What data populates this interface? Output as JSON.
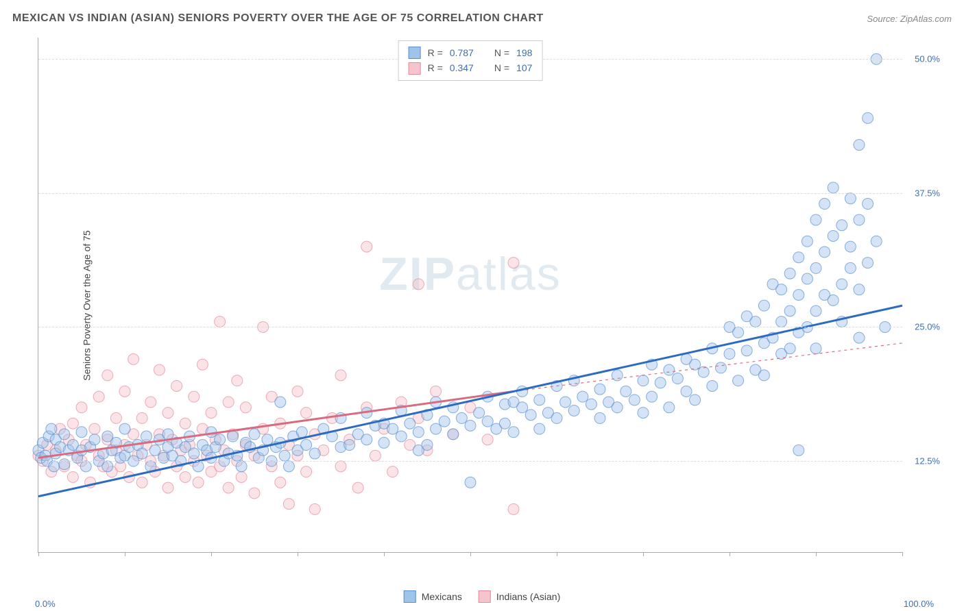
{
  "header": {
    "title": "MEXICAN VS INDIAN (ASIAN) SENIORS POVERTY OVER THE AGE OF 75 CORRELATION CHART",
    "source_prefix": "Source: ",
    "source_name": "ZipAtlas.com"
  },
  "watermark": {
    "left": "ZIP",
    "right": "atlas"
  },
  "chart": {
    "type": "scatter",
    "ylabel": "Seniors Poverty Over the Age of 75",
    "xlim": [
      0,
      100
    ],
    "ylim": [
      4,
      52
    ],
    "xtick_positions": [
      0,
      10,
      20,
      30,
      40,
      50,
      60,
      70,
      80,
      90,
      100
    ],
    "xtick_labels": {
      "0": "0.0%",
      "100": "100.0%"
    },
    "ytick_positions": [
      12.5,
      25.0,
      37.5,
      50.0
    ],
    "ytick_labels": [
      "12.5%",
      "25.0%",
      "37.5%",
      "50.0%"
    ],
    "grid_color": "#dddddd",
    "axis_color": "#aaaaaa",
    "background_color": "#ffffff",
    "marker_radius": 8,
    "marker_opacity": 0.45,
    "line_width_solid": 3,
    "line_width_dashed": 1.2,
    "series": {
      "mexicans": {
        "label": "Mexicans",
        "fill_color": "#9fc4ea",
        "stroke_color": "#5a8fcf",
        "line_color": "#2d6bc0",
        "trend_start": [
          0,
          9.2
        ],
        "trend_end": [
          100,
          27.0
        ],
        "points": [
          [
            0,
            13.5
          ],
          [
            0.3,
            12.8
          ],
          [
            0.5,
            14.2
          ],
          [
            0.8,
            13.0
          ],
          [
            1,
            12.5
          ],
          [
            1.2,
            14.8
          ],
          [
            1.5,
            15.5
          ],
          [
            1.8,
            12.0
          ],
          [
            2,
            13.2
          ],
          [
            2,
            14.5
          ],
          [
            2.5,
            13.8
          ],
          [
            3,
            12.2
          ],
          [
            3,
            15.0
          ],
          [
            3.5,
            13.5
          ],
          [
            4,
            14.0
          ],
          [
            4.5,
            12.8
          ],
          [
            5,
            13.5
          ],
          [
            5,
            15.2
          ],
          [
            5.5,
            12.0
          ],
          [
            6,
            13.8
          ],
          [
            6.5,
            14.5
          ],
          [
            7,
            12.5
          ],
          [
            7.5,
            13.2
          ],
          [
            8,
            14.8
          ],
          [
            8,
            12.0
          ],
          [
            8.5,
            13.5
          ],
          [
            9,
            14.2
          ],
          [
            9.5,
            12.8
          ],
          [
            10,
            13.0
          ],
          [
            10,
            15.5
          ],
          [
            10.5,
            13.8
          ],
          [
            11,
            12.5
          ],
          [
            11.5,
            14.0
          ],
          [
            12,
            13.2
          ],
          [
            12.5,
            14.8
          ],
          [
            13,
            12.0
          ],
          [
            13.5,
            13.5
          ],
          [
            14,
            14.5
          ],
          [
            14.5,
            12.8
          ],
          [
            15,
            13.8
          ],
          [
            15,
            15.0
          ],
          [
            15.5,
            13.0
          ],
          [
            16,
            14.2
          ],
          [
            16.5,
            12.5
          ],
          [
            17,
            13.8
          ],
          [
            17.5,
            14.8
          ],
          [
            18,
            13.2
          ],
          [
            18.5,
            12.0
          ],
          [
            19,
            14.0
          ],
          [
            19.5,
            13.5
          ],
          [
            20,
            12.8
          ],
          [
            20,
            15.2
          ],
          [
            20.5,
            13.8
          ],
          [
            21,
            14.5
          ],
          [
            21.5,
            12.5
          ],
          [
            22,
            13.2
          ],
          [
            22.5,
            14.8
          ],
          [
            23,
            13.0
          ],
          [
            23.5,
            12.0
          ],
          [
            24,
            14.2
          ],
          [
            24.5,
            13.8
          ],
          [
            25,
            15.0
          ],
          [
            25.5,
            12.8
          ],
          [
            26,
            13.5
          ],
          [
            26.5,
            14.5
          ],
          [
            27,
            12.5
          ],
          [
            27.5,
            13.8
          ],
          [
            28,
            14.2
          ],
          [
            28,
            18.0
          ],
          [
            28.5,
            13.0
          ],
          [
            29,
            12.0
          ],
          [
            29.5,
            14.8
          ],
          [
            30,
            13.5
          ],
          [
            30.5,
            15.2
          ],
          [
            31,
            14.0
          ],
          [
            32,
            13.2
          ],
          [
            33,
            15.5
          ],
          [
            34,
            14.8
          ],
          [
            35,
            13.8
          ],
          [
            35,
            16.5
          ],
          [
            36,
            14.0
          ],
          [
            37,
            15.0
          ],
          [
            38,
            14.5
          ],
          [
            38,
            17.0
          ],
          [
            39,
            15.8
          ],
          [
            40,
            14.2
          ],
          [
            40,
            16.0
          ],
          [
            41,
            15.5
          ],
          [
            42,
            14.8
          ],
          [
            42,
            17.2
          ],
          [
            43,
            16.0
          ],
          [
            44,
            15.2
          ],
          [
            44,
            13.5
          ],
          [
            45,
            16.8
          ],
          [
            45,
            14.0
          ],
          [
            46,
            15.5
          ],
          [
            46,
            18.0
          ],
          [
            47,
            16.2
          ],
          [
            48,
            15.0
          ],
          [
            48,
            17.5
          ],
          [
            49,
            16.5
          ],
          [
            50,
            15.8
          ],
          [
            50,
            10.5
          ],
          [
            51,
            17.0
          ],
          [
            52,
            16.2
          ],
          [
            52,
            18.5
          ],
          [
            53,
            15.5
          ],
          [
            54,
            17.8
          ],
          [
            54,
            16.0
          ],
          [
            55,
            18.0
          ],
          [
            55,
            15.2
          ],
          [
            56,
            17.5
          ],
          [
            56,
            19.0
          ],
          [
            57,
            16.8
          ],
          [
            58,
            18.2
          ],
          [
            58,
            15.5
          ],
          [
            59,
            17.0
          ],
          [
            60,
            19.5
          ],
          [
            60,
            16.5
          ],
          [
            61,
            18.0
          ],
          [
            62,
            17.2
          ],
          [
            62,
            20.0
          ],
          [
            63,
            18.5
          ],
          [
            64,
            17.8
          ],
          [
            65,
            19.2
          ],
          [
            65,
            16.5
          ],
          [
            66,
            18.0
          ],
          [
            67,
            20.5
          ],
          [
            67,
            17.5
          ],
          [
            68,
            19.0
          ],
          [
            69,
            18.2
          ],
          [
            70,
            20.0
          ],
          [
            70,
            17.0
          ],
          [
            71,
            21.5
          ],
          [
            71,
            18.5
          ],
          [
            72,
            19.8
          ],
          [
            73,
            21.0
          ],
          [
            73,
            17.5
          ],
          [
            74,
            20.2
          ],
          [
            75,
            22.0
          ],
          [
            75,
            19.0
          ],
          [
            76,
            21.5
          ],
          [
            76,
            18.2
          ],
          [
            77,
            20.8
          ],
          [
            78,
            23.0
          ],
          [
            78,
            19.5
          ],
          [
            79,
            21.2
          ],
          [
            80,
            22.5
          ],
          [
            80,
            25.0
          ],
          [
            81,
            20.0
          ],
          [
            81,
            24.5
          ],
          [
            82,
            22.8
          ],
          [
            82,
            26.0
          ],
          [
            83,
            21.0
          ],
          [
            83,
            25.5
          ],
          [
            84,
            23.5
          ],
          [
            84,
            27.0
          ],
          [
            84,
            20.5
          ],
          [
            85,
            24.0
          ],
          [
            85,
            29.0
          ],
          [
            86,
            22.5
          ],
          [
            86,
            28.5
          ],
          [
            86,
            25.5
          ],
          [
            87,
            23.0
          ],
          [
            87,
            30.0
          ],
          [
            87,
            26.5
          ],
          [
            88,
            24.5
          ],
          [
            88,
            31.5
          ],
          [
            88,
            28.0
          ],
          [
            88,
            13.5
          ],
          [
            89,
            25.0
          ],
          [
            89,
            33.0
          ],
          [
            89,
            29.5
          ],
          [
            90,
            26.5
          ],
          [
            90,
            35.0
          ],
          [
            90,
            30.5
          ],
          [
            90,
            23.0
          ],
          [
            91,
            28.0
          ],
          [
            91,
            36.5
          ],
          [
            91,
            32.0
          ],
          [
            92,
            27.5
          ],
          [
            92,
            38.0
          ],
          [
            92,
            33.5
          ],
          [
            93,
            29.0
          ],
          [
            93,
            34.5
          ],
          [
            93,
            25.5
          ],
          [
            94,
            30.5
          ],
          [
            94,
            37.0
          ],
          [
            94,
            32.5
          ],
          [
            95,
            28.5
          ],
          [
            95,
            42.0
          ],
          [
            95,
            35.0
          ],
          [
            95,
            24.0
          ],
          [
            96,
            31.0
          ],
          [
            96,
            44.5
          ],
          [
            96,
            36.5
          ],
          [
            97,
            33.0
          ],
          [
            97,
            50.0
          ],
          [
            98,
            25.0
          ]
        ]
      },
      "indians": {
        "label": "Indians (Asian)",
        "fill_color": "#f5c4cc",
        "stroke_color": "#e58a9c",
        "line_color": "#d96b80",
        "trend_start": [
          0,
          12.8
        ],
        "trend_end": [
          55,
          19.0
        ],
        "dashed_start": [
          55,
          19.0
        ],
        "dashed_end": [
          100,
          23.5
        ],
        "points": [
          [
            0,
            13.0
          ],
          [
            0.5,
            12.5
          ],
          [
            1,
            14.0
          ],
          [
            1.5,
            11.5
          ],
          [
            2,
            13.5
          ],
          [
            2.5,
            15.5
          ],
          [
            3,
            12.0
          ],
          [
            3.5,
            14.5
          ],
          [
            4,
            11.0
          ],
          [
            4,
            16.0
          ],
          [
            4.5,
            13.0
          ],
          [
            5,
            12.5
          ],
          [
            5,
            17.5
          ],
          [
            5.5,
            14.0
          ],
          [
            6,
            10.5
          ],
          [
            6.5,
            15.5
          ],
          [
            7,
            13.0
          ],
          [
            7,
            18.5
          ],
          [
            7.5,
            12.0
          ],
          [
            8,
            14.5
          ],
          [
            8,
            20.5
          ],
          [
            8.5,
            11.5
          ],
          [
            9,
            13.5
          ],
          [
            9,
            16.5
          ],
          [
            9.5,
            12.0
          ],
          [
            10,
            14.0
          ],
          [
            10,
            19.0
          ],
          [
            10.5,
            11.0
          ],
          [
            11,
            15.0
          ],
          [
            11,
            22.0
          ],
          [
            11.5,
            13.0
          ],
          [
            12,
            10.5
          ],
          [
            12,
            16.5
          ],
          [
            12.5,
            14.0
          ],
          [
            13,
            12.5
          ],
          [
            13,
            18.0
          ],
          [
            13.5,
            11.5
          ],
          [
            14,
            15.0
          ],
          [
            14,
            21.0
          ],
          [
            14.5,
            13.0
          ],
          [
            15,
            10.0
          ],
          [
            15,
            17.0
          ],
          [
            15.5,
            14.5
          ],
          [
            16,
            12.0
          ],
          [
            16,
            19.5
          ],
          [
            16.5,
            13.5
          ],
          [
            17,
            11.0
          ],
          [
            17,
            16.0
          ],
          [
            17.5,
            14.0
          ],
          [
            18,
            12.5
          ],
          [
            18,
            18.5
          ],
          [
            18.5,
            10.5
          ],
          [
            19,
            15.5
          ],
          [
            19,
            21.5
          ],
          [
            19.5,
            13.0
          ],
          [
            20,
            11.5
          ],
          [
            20,
            17.0
          ],
          [
            20.5,
            14.5
          ],
          [
            21,
            12.0
          ],
          [
            21,
            25.5
          ],
          [
            21.5,
            13.5
          ],
          [
            22,
            10.0
          ],
          [
            22,
            18.0
          ],
          [
            22.5,
            15.0
          ],
          [
            23,
            12.5
          ],
          [
            23,
            20.0
          ],
          [
            23.5,
            11.0
          ],
          [
            24,
            14.0
          ],
          [
            24,
            17.5
          ],
          [
            25,
            13.0
          ],
          [
            25,
            9.5
          ],
          [
            26,
            15.5
          ],
          [
            26,
            25.0
          ],
          [
            27,
            12.0
          ],
          [
            27,
            18.5
          ],
          [
            28,
            10.5
          ],
          [
            28,
            16.0
          ],
          [
            29,
            14.0
          ],
          [
            29,
            8.5
          ],
          [
            30,
            13.0
          ],
          [
            30,
            19.0
          ],
          [
            31,
            11.5
          ],
          [
            31,
            17.0
          ],
          [
            32,
            15.0
          ],
          [
            32,
            8.0
          ],
          [
            33,
            13.5
          ],
          [
            34,
            16.5
          ],
          [
            35,
            12.0
          ],
          [
            35,
            20.5
          ],
          [
            36,
            14.5
          ],
          [
            37,
            10.0
          ],
          [
            38,
            17.5
          ],
          [
            38,
            32.5
          ],
          [
            39,
            13.0
          ],
          [
            40,
            15.5
          ],
          [
            41,
            11.5
          ],
          [
            42,
            18.0
          ],
          [
            43,
            14.0
          ],
          [
            44,
            16.5
          ],
          [
            44,
            29.0
          ],
          [
            45,
            13.5
          ],
          [
            46,
            19.0
          ],
          [
            48,
            15.0
          ],
          [
            50,
            17.5
          ],
          [
            52,
            14.5
          ],
          [
            55,
            8.0
          ],
          [
            55,
            31.0
          ]
        ]
      }
    },
    "stats_legend": {
      "rows": [
        {
          "swatch_series": "mexicans",
          "r_label": "R =",
          "r_value": "0.787",
          "n_label": "N =",
          "n_value": "198"
        },
        {
          "swatch_series": "indians",
          "r_label": "R =",
          "r_value": "0.347",
          "n_label": "N =",
          "n_value": "107"
        }
      ]
    }
  }
}
